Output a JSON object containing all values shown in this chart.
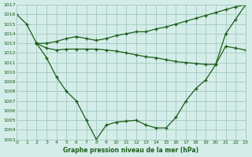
{
  "line1_x": [
    0,
    1,
    2,
    3,
    4,
    5,
    6,
    7,
    8,
    9,
    10,
    11,
    12,
    13,
    14,
    15,
    16,
    17,
    18,
    19,
    20,
    21,
    22,
    23
  ],
  "line1_y": [
    1016,
    1015,
    1013,
    1011.5,
    1009.5,
    1008,
    1007,
    1005,
    1003,
    1004.5,
    1004.8,
    1004.9,
    1005,
    1004.5,
    1004.2,
    1004.2,
    1005.3,
    1007,
    1008.3,
    1009.2,
    1010.8,
    1014,
    1015.5,
    1017
  ],
  "line2_x": [
    2,
    3,
    4,
    5,
    6,
    7,
    8,
    9,
    10,
    11,
    12,
    13,
    14,
    15,
    16,
    17,
    18,
    19,
    20,
    21,
    22,
    23
  ],
  "line2_y": [
    1013,
    1013,
    1013.2,
    1013.5,
    1013.7,
    1013.5,
    1013.3,
    1013.5,
    1013.8,
    1014.0,
    1014.2,
    1014.2,
    1014.5,
    1014.7,
    1015.0,
    1015.3,
    1015.6,
    1015.9,
    1016.2,
    1016.5,
    1016.8,
    1017
  ],
  "line3_x": [
    2,
    3,
    4,
    5,
    6,
    7,
    8,
    9,
    10,
    11,
    12,
    13,
    14,
    15,
    16,
    17,
    18,
    19,
    20,
    21,
    22,
    23
  ],
  "line3_y": [
    1013,
    1012.5,
    1012.3,
    1012.4,
    1012.4,
    1012.4,
    1012.4,
    1012.3,
    1012.2,
    1012.0,
    1011.8,
    1011.6,
    1011.5,
    1011.3,
    1011.1,
    1011.0,
    1010.9,
    1010.8,
    1010.8,
    1012.7,
    1012.5,
    1012.3
  ],
  "bg_color": "#d5ede8",
  "grid_color": "#a8ccc6",
  "line_color": "#1a5e1a",
  "xlabel": "Graphe pression niveau de la mer (hPa)",
  "ylim": [
    1003,
    1017
  ],
  "xlim": [
    0,
    23
  ],
  "yticks": [
    1003,
    1004,
    1005,
    1006,
    1007,
    1008,
    1009,
    1010,
    1011,
    1012,
    1013,
    1014,
    1015,
    1016,
    1017
  ],
  "xticks": [
    0,
    1,
    2,
    3,
    4,
    5,
    6,
    7,
    8,
    9,
    10,
    11,
    12,
    13,
    14,
    15,
    16,
    17,
    18,
    19,
    20,
    21,
    22,
    23
  ]
}
